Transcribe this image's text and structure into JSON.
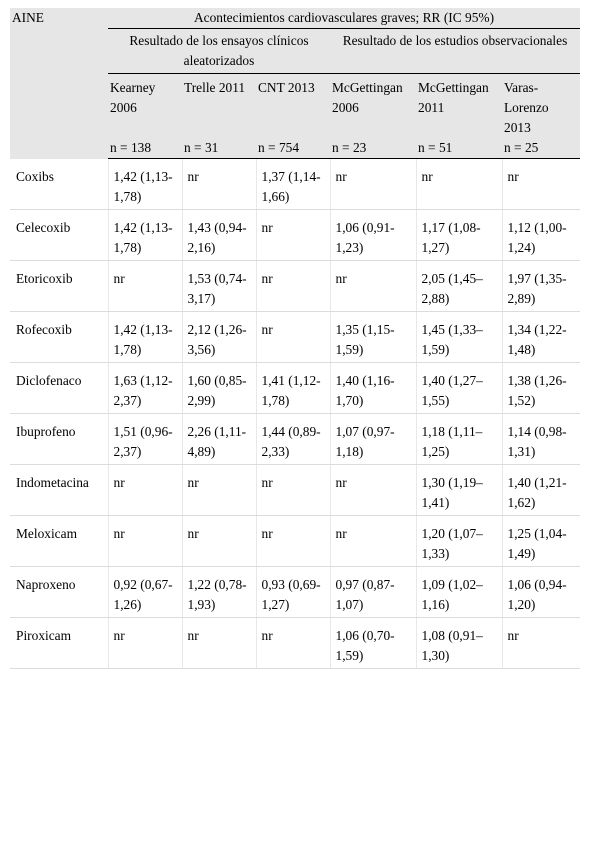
{
  "header": {
    "aine_label": "AINE",
    "top_title": "Acontecimientos cardiovasculares graves; RR (IC 95%)",
    "group_trials": "Resultado de los ensayos clínicos aleatorizados",
    "group_obs": "Resultado de los estudios observacionales",
    "studies": [
      {
        "name": "Kearney 2006",
        "n": "n = 138"
      },
      {
        "name": "Trelle 2011",
        "n": "n = 31"
      },
      {
        "name": "CNT 2013",
        "n": "n = 754"
      },
      {
        "name": "McGettingan 2006",
        "n": "n = 23"
      },
      {
        "name": "McGettingan 2011",
        "n": "n = 51"
      },
      {
        "name": "Varas-Lorenzo 2013",
        "n": "n = 25"
      }
    ]
  },
  "rows": [
    {
      "name": "Coxibs",
      "cells": [
        "1,42 (1,13-1,78)",
        "nr",
        "1,37 (1,14-1,66)",
        "nr",
        "nr",
        "nr"
      ]
    },
    {
      "name": "Celecoxib",
      "cells": [
        "1,42 (1,13-1,78)",
        "1,43 (0,94-2,16)",
        "nr",
        "1,06 (0,91-1,23)",
        "1,17 (1,08-1,27)",
        "1,12 (1,00-1,24)"
      ]
    },
    {
      "name": "Etoricoxib",
      "cells": [
        "nr",
        "1,53 (0,74-3,17)",
        "nr",
        "nr",
        "2,05 (1,45–2,88)",
        "1,97 (1,35-2,89)"
      ]
    },
    {
      "name": "Rofecoxib",
      "cells": [
        "1,42 (1,13-1,78)",
        "2,12 (1,26-3,56)",
        "nr",
        "1,35 (1,15-1,59)",
        "1,45 (1,33–1,59)",
        "1,34 (1,22-1,48)"
      ]
    },
    {
      "name": "Diclofenaco",
      "cells": [
        "1,63 (1,12-2,37)",
        "1,60 (0,85-2,99)",
        "1,41 (1,12-1,78)",
        "1,40 (1,16-1,70)",
        "1,40 (1,27–1,55)",
        "1,38 (1,26-1,52)"
      ]
    },
    {
      "name": "Ibuprofeno",
      "cells": [
        "1,51 (0,96-2,37)",
        "2,26 (1,11-4,89)",
        "1,44 (0,89-2,33)",
        "1,07 (0,97-1,18)",
        "1,18 (1,11–1,25)",
        "1,14 (0,98-1,31)"
      ]
    },
    {
      "name": "Indometacina",
      "cells": [
        "nr",
        "nr",
        "nr",
        "nr",
        "1,30 (1,19–1,41)",
        "1,40 (1,21-1,62)"
      ]
    },
    {
      "name": "Meloxicam",
      "cells": [
        "nr",
        "nr",
        "nr",
        "nr",
        "1,20 (1,07–1,33)",
        "1,25 (1,04-1,49)"
      ]
    },
    {
      "name": "Naproxeno",
      "cells": [
        "0,92 (0,67-1,26)",
        "1,22 (0,78-1,93)",
        "0,93 (0,69-1,27)",
        "0,97 (0,87-1,07)",
        "1,09 (1,02–1,16)",
        "1,06 (0,94-1,20)"
      ]
    },
    {
      "name": "Piroxicam",
      "cells": [
        "nr",
        "nr",
        "nr",
        "1,06 (0,70-1,59)",
        "1,08 (0,91–1,30)",
        "nr"
      ]
    }
  ]
}
